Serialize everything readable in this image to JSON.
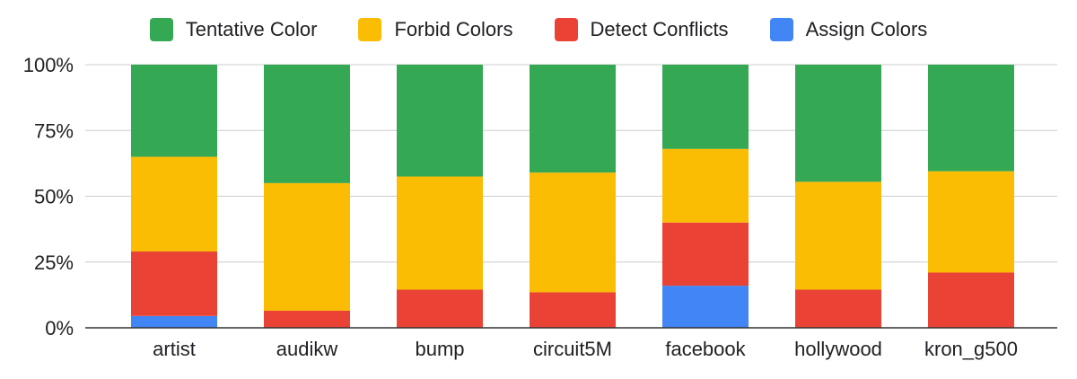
{
  "chart_data": {
    "type": "bar",
    "stacked": true,
    "percent": true,
    "categories": [
      "artist",
      "audikw",
      "bump",
      "circuit5M",
      "facebook",
      "hollywood",
      "kron_g500"
    ],
    "series": [
      {
        "name": "Assign Colors",
        "color": "#4285f4",
        "values": [
          4.5,
          0,
          0,
          0,
          16,
          0,
          0
        ]
      },
      {
        "name": "Detect Conflicts",
        "color": "#ea4335",
        "values": [
          24.5,
          6.5,
          14.5,
          13.5,
          24,
          14.5,
          21
        ]
      },
      {
        "name": "Forbid Colors",
        "color": "#fbbc04",
        "values": [
          36,
          48.5,
          43,
          45.5,
          28,
          41,
          38.5
        ]
      },
      {
        "name": "Tentative Color",
        "color": "#34a853",
        "values": [
          35,
          45,
          42.5,
          41,
          32,
          44.5,
          40.5
        ]
      }
    ],
    "legend_order": [
      "Tentative Color",
      "Forbid Colors",
      "Detect Conflicts",
      "Assign Colors"
    ],
    "ylim": [
      0,
      100
    ],
    "yticks": [
      "0%",
      "25%",
      "50%",
      "75%",
      "100%"
    ],
    "ytick_values": [
      0,
      25,
      50,
      75,
      100
    ],
    "grid": true,
    "legend_position": "top"
  }
}
